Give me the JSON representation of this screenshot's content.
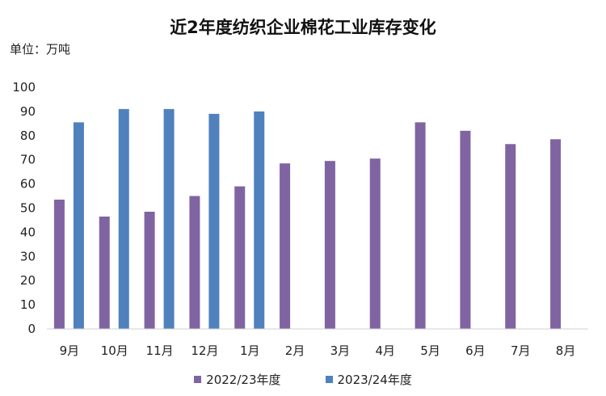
{
  "chart_data": {
    "type": "bar",
    "title": "近2年度纺织企业棉花工业库存变化",
    "unit_label": "单位：万吨",
    "categories": [
      "9月",
      "10月",
      "11月",
      "12月",
      "1月",
      "2月",
      "3月",
      "4月",
      "5月",
      "6月",
      "7月",
      "8月"
    ],
    "series": [
      {
        "name": "2022/23年度",
        "color": "#8064A2",
        "values": [
          53.5,
          46.5,
          48.5,
          55,
          59,
          68.5,
          69.5,
          70.5,
          85.5,
          82,
          76.5,
          78.5
        ]
      },
      {
        "name": "2023/24年度",
        "color": "#4F81BD",
        "values": [
          85.5,
          91,
          91,
          89,
          90,
          null,
          null,
          null,
          null,
          null,
          null,
          null
        ]
      }
    ],
    "ylim": [
      0,
      100
    ],
    "yticks": [
      0,
      10,
      20,
      30,
      40,
      50,
      60,
      70,
      80,
      90,
      100
    ],
    "grid": false,
    "legend_position": "bottom"
  }
}
